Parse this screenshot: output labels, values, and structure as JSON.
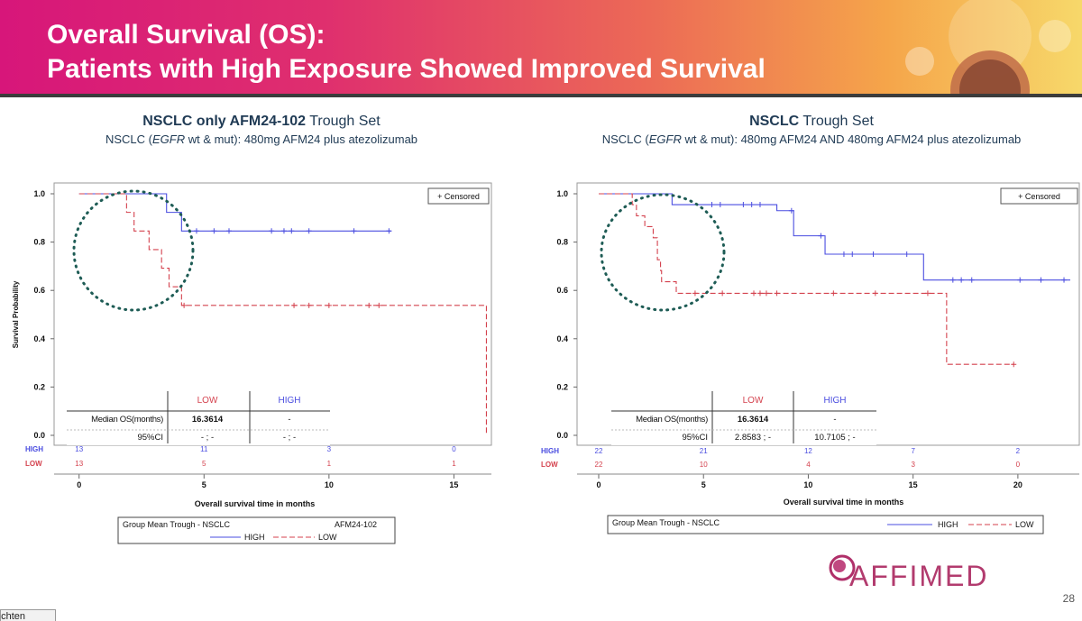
{
  "banner": {
    "title_line1": "Overall Survival (OS):",
    "title_line2": "Patients with High Exposure Showed Improved Survival"
  },
  "left_panel": {
    "title_bold": "NSCLC only AFM24-102",
    "title_rest": " Trough Set",
    "subtitle_pre": "NSCLC (",
    "subtitle_italic": "EGFR",
    "subtitle_post": " wt & mut): 480mg AFM24 plus atezolizumab"
  },
  "right_panel": {
    "title_bold": "NSCLC",
    "title_rest": " Trough Set",
    "subtitle_pre": "NSCLC (",
    "subtitle_italic": "EGFR",
    "subtitle_post": " wt & mut): 480mg AFM24  AND  480mg AFM24  plus atezolizumab"
  },
  "footer": {
    "page_number": "28",
    "logo_text": "AFFIMED",
    "bottom_tab": "richten"
  },
  "colors": {
    "high": "#4a4de0",
    "low": "#d4424e",
    "circle": "#1e5c55",
    "axis_text": "#111111"
  },
  "chart_data": [
    {
      "type": "line",
      "title": "NSCLC only AFM24-102 Trough Set",
      "xlabel": "Overall survival time in months",
      "ylabel": "Survival Probability",
      "xlim": [
        -1,
        16.5
      ],
      "ylim": [
        0,
        1
      ],
      "xticks": [
        0,
        5,
        10,
        15
      ],
      "xtick_labels": [
        "0",
        "5",
        "10",
        "15"
      ],
      "yticks": [
        0,
        0.2,
        0.4,
        0.6,
        0.8,
        1.0
      ],
      "ytick_labels": [
        "0.0",
        "0.2",
        "0.4",
        "0.6",
        "0.8",
        "1.0"
      ],
      "censored_legend": "+ Censored",
      "series": [
        {
          "name": "HIGH",
          "style": "solid",
          "steps": [
            [
              0,
              1.0
            ],
            [
              3.5,
              0.923
            ],
            [
              4.1,
              0.846
            ],
            [
              12.5,
              0.846
            ]
          ],
          "censored": [
            [
              4.7,
              0.846
            ],
            [
              5.4,
              0.846
            ],
            [
              6.0,
              0.846
            ],
            [
              7.7,
              0.846
            ],
            [
              8.2,
              0.846
            ],
            [
              8.5,
              0.846
            ],
            [
              9.2,
              0.846
            ],
            [
              11.0,
              0.846
            ],
            [
              12.4,
              0.846
            ]
          ]
        },
        {
          "name": "LOW",
          "style": "dashed",
          "steps": [
            [
              0,
              1.0
            ],
            [
              1.9,
              0.923
            ],
            [
              2.2,
              0.846
            ],
            [
              2.8,
              0.769
            ],
            [
              3.3,
              0.692
            ],
            [
              3.6,
              0.615
            ],
            [
              4.1,
              0.538
            ],
            [
              16.3,
              0.538
            ],
            [
              16.3,
              0.0
            ]
          ],
          "censored": [
            [
              4.2,
              0.538
            ],
            [
              8.6,
              0.538
            ],
            [
              9.2,
              0.538
            ],
            [
              10.0,
              0.538
            ],
            [
              11.6,
              0.538
            ],
            [
              12.0,
              0.538
            ]
          ]
        }
      ],
      "at_risk": {
        "x": [
          0,
          5,
          10,
          15
        ],
        "HIGH": [
          "13",
          "11",
          "3",
          "0"
        ],
        "LOW": [
          "13",
          "5",
          "1",
          "1"
        ]
      },
      "stats_table": {
        "col_low": "LOW",
        "col_high": "HIGH",
        "row1_label": "Median OS(months)",
        "row1_low": "16.3614",
        "row1_high": "-",
        "row2_label": "95%CI",
        "row2_low": "- ; -",
        "row2_high": "- ; -"
      },
      "legend": {
        "title": "Group Mean Trough - NSCLC",
        "title_right": "AFM24-102",
        "high": "HIGH",
        "low": "LOW"
      }
    },
    {
      "type": "line",
      "title": "NSCLC Trough Set",
      "xlabel": "Overall survival time in months",
      "ylabel": "Survival Probability",
      "xlim": [
        0,
        22.5
      ],
      "ylim": [
        0,
        1
      ],
      "xticks": [
        0,
        5,
        10,
        15,
        20
      ],
      "xtick_labels": [
        "0",
        "5",
        "10",
        "15",
        "20"
      ],
      "yticks": [
        0,
        0.2,
        0.4,
        0.6,
        0.8,
        1.0
      ],
      "ytick_labels": [
        "0.0",
        "0.2",
        "0.4",
        "0.6",
        "0.8",
        "1.0"
      ],
      "censored_legend": "+ Censored",
      "series": [
        {
          "name": "HIGH",
          "style": "solid",
          "steps": [
            [
              0,
              1.0
            ],
            [
              3.5,
              0.955
            ],
            [
              8.5,
              0.93
            ],
            [
              9.3,
              0.826
            ],
            [
              10.8,
              0.75
            ],
            [
              15.5,
              0.643
            ],
            [
              22.5,
              0.643
            ]
          ],
          "censored": [
            [
              5.4,
              0.955
            ],
            [
              5.8,
              0.955
            ],
            [
              6.9,
              0.955
            ],
            [
              7.3,
              0.955
            ],
            [
              7.7,
              0.955
            ],
            [
              9.2,
              0.93
            ],
            [
              10.6,
              0.826
            ],
            [
              11.7,
              0.75
            ],
            [
              12.1,
              0.75
            ],
            [
              13.1,
              0.75
            ],
            [
              14.7,
              0.75
            ],
            [
              16.9,
              0.643
            ],
            [
              17.3,
              0.643
            ],
            [
              17.8,
              0.643
            ],
            [
              20.1,
              0.643
            ],
            [
              21.1,
              0.643
            ],
            [
              22.2,
              0.643
            ]
          ]
        },
        {
          "name": "LOW",
          "style": "dashed",
          "steps": [
            [
              0,
              1.0
            ],
            [
              1.6,
              0.955
            ],
            [
              1.8,
              0.909
            ],
            [
              2.2,
              0.864
            ],
            [
              2.6,
              0.818
            ],
            [
              2.8,
              0.727
            ],
            [
              2.95,
              0.682
            ],
            [
              3.0,
              0.636
            ],
            [
              3.7,
              0.588
            ],
            [
              16.6,
              0.588
            ],
            [
              16.6,
              0.294
            ],
            [
              19.8,
              0.294
            ]
          ],
          "censored": [
            [
              4.6,
              0.588
            ],
            [
              5.9,
              0.588
            ],
            [
              7.4,
              0.588
            ],
            [
              7.7,
              0.588
            ],
            [
              8.0,
              0.588
            ],
            [
              8.5,
              0.588
            ],
            [
              11.2,
              0.588
            ],
            [
              13.2,
              0.588
            ],
            [
              15.7,
              0.588
            ],
            [
              19.8,
              0.294
            ]
          ]
        }
      ],
      "at_risk": {
        "x": [
          0,
          5,
          10,
          15,
          20
        ],
        "HIGH": [
          "22",
          "21",
          "12",
          "7",
          "2"
        ],
        "LOW": [
          "22",
          "10",
          "4",
          "3",
          "0"
        ]
      },
      "stats_table": {
        "col_low": "LOW",
        "col_high": "HIGH",
        "row1_label": "Median OS(months)",
        "row1_low": "16.3614",
        "row1_high": "-",
        "row2_label": "95%CI",
        "row2_low": "2.8583 ; -",
        "row2_high": "10.7105 ; -"
      },
      "legend": {
        "title": "Group Mean Trough - NSCLC",
        "high": "HIGH",
        "low": "LOW"
      }
    }
  ]
}
